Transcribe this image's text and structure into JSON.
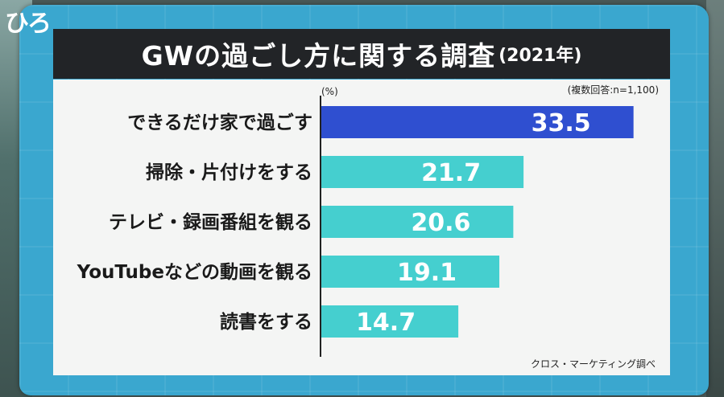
{
  "logo": "ひろ",
  "title": {
    "main": "GWの過ごし方に関する調査",
    "year": "(2021年)"
  },
  "unit": "(%)",
  "sample_note": "(複数回答:n=1,100)",
  "source": "クロス・マーケティング調べ",
  "colors": {
    "highlight_bar": "#2f4fd0",
    "bar": "#45cfcf",
    "title_bg": "#222427",
    "screen_bg": "#3aa7cf"
  },
  "chart_data": {
    "type": "bar",
    "orientation": "horizontal",
    "title": "GWの過ごし方に関する調査(2021年)",
    "categories": [
      "できるだけ家で過ごす",
      "掃除・片付けをする",
      "テレビ・録画番組を観る",
      "YouTubeなどの動画を観る",
      "読書をする"
    ],
    "values": [
      33.5,
      21.7,
      20.6,
      19.1,
      14.7
    ],
    "value_labels": [
      "33.5",
      "21.7",
      "20.6",
      "19.1",
      "14.7"
    ],
    "highlight_index": 0,
    "xlim": [
      0,
      35
    ],
    "unit": "%",
    "grid": false,
    "legend": "none"
  }
}
